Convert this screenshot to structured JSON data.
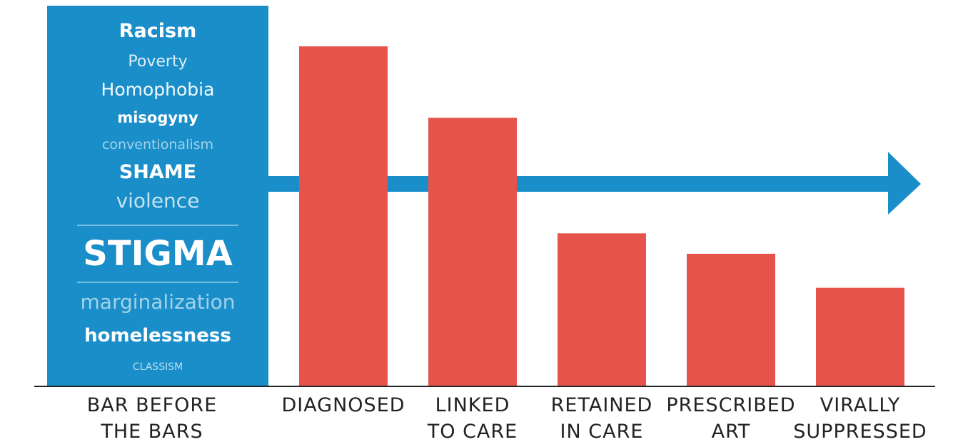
{
  "chart_data": {
    "type": "bar",
    "categories": [
      [
        "DIAGNOSED"
      ],
      [
        "LINKED",
        "TO CARE"
      ],
      [
        "RETAINED",
        "IN CARE"
      ],
      [
        "PRESCRIBED",
        "ART"
      ],
      [
        "VIRALLY",
        "SUPPRESSED"
      ]
    ],
    "values": [
      100,
      79,
      45,
      39,
      29
    ],
    "ylim": [
      0,
      100
    ],
    "bar_color": "#e5534b",
    "bar_before_the_bars": {
      "label": [
        "BAR BEFORE",
        "THE BARS"
      ],
      "color": "#1a8ec9",
      "words": [
        {
          "text": "Racism",
          "weight": "bold",
          "size": 27,
          "opacity": 1.0
        },
        {
          "text": "Poverty",
          "weight": "normal",
          "size": 22,
          "opacity": 0.85
        },
        {
          "text": "Homophobia",
          "weight": "normal",
          "size": 25,
          "opacity": 0.95
        },
        {
          "text": "misogyny",
          "weight": "bold",
          "size": 21,
          "opacity": 1.0
        },
        {
          "text": "conventionalism",
          "weight": "normal",
          "size": 19,
          "opacity": 0.6
        },
        {
          "text": "SHAME",
          "weight": "bold",
          "size": 27,
          "opacity": 1.0
        },
        {
          "text": "violence",
          "weight": "normal",
          "size": 28,
          "opacity": 0.75
        },
        {
          "text": "STIGMA",
          "weight": "bold",
          "size": 48,
          "opacity": 1.0
        },
        {
          "text": "marginalization",
          "weight": "normal",
          "size": 28,
          "opacity": 0.6
        },
        {
          "text": "homelessness",
          "weight": "bold",
          "size": 26,
          "opacity": 1.0
        },
        {
          "text": "CLASSISM",
          "weight": "normal",
          "size": 14,
          "opacity": 0.7
        }
      ]
    },
    "arrow_color": "#1a8ec9",
    "axis_color": "#222222",
    "grid": false
  }
}
